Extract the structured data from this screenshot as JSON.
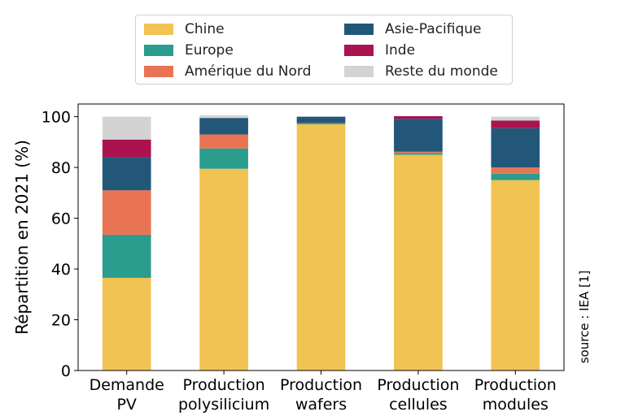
{
  "chart_data": {
    "type": "bar",
    "stacked": true,
    "categories": [
      "Demande\nPV",
      "Production\npolysilicium",
      "Production\nwafers",
      "Production\ncellules",
      "Production\nmodules"
    ],
    "series": [
      {
        "name": "Chine",
        "color": "#f1c352",
        "values": [
          36.5,
          79.5,
          97,
          85,
          75
        ]
      },
      {
        "name": "Europe",
        "color": "#2a9d8f",
        "values": [
          17,
          8,
          0.3,
          0.7,
          2.5
        ]
      },
      {
        "name": "Amérique du Nord",
        "color": "#e97453",
        "values": [
          17.5,
          5.5,
          0.2,
          0.5,
          2.5
        ]
      },
      {
        "name": "Asie-Pacifique",
        "color": "#22577a",
        "values": [
          13,
          6.5,
          2.5,
          13,
          15.5
        ]
      },
      {
        "name": "Inde",
        "color": "#ab1250",
        "values": [
          7,
          0,
          0,
          1,
          3
        ]
      },
      {
        "name": "Reste du monde",
        "color": "#d3d3d3",
        "values": [
          9,
          1,
          0,
          0,
          1.5
        ]
      }
    ],
    "ylabel": "Répartition en 2021 (%)",
    "xlabel": "",
    "ylim": [
      0,
      105
    ],
    "yticks": [
      0,
      20,
      40,
      60,
      80,
      100
    ],
    "grid": false,
    "legend_position": "top",
    "annotation": "source : IEA [1]"
  }
}
